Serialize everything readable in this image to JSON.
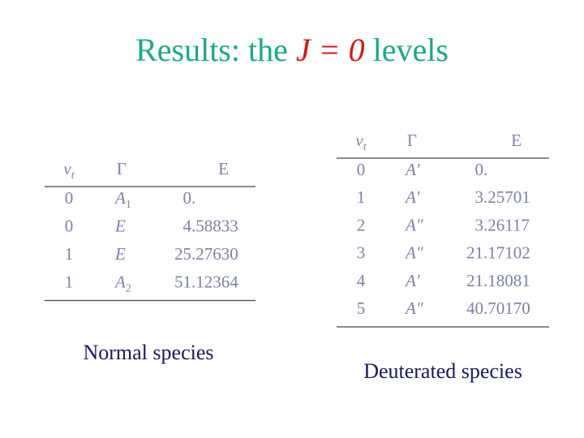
{
  "title": {
    "prefix": "Results: the",
    "math": "J = 0",
    "suffix": "levels"
  },
  "tables": [
    {
      "headers": {
        "v": "v",
        "v_sub": "t",
        "gamma": "Γ",
        "E": "E"
      },
      "rows": [
        {
          "v": "0",
          "gamma": "A",
          "gamma_sub": "1",
          "E": "0."
        },
        {
          "v": "0",
          "gamma": "E",
          "E": "4.58833"
        },
        {
          "v": "1",
          "gamma": "E",
          "E": "25.27630"
        },
        {
          "v": "1",
          "gamma": "A",
          "gamma_sub": "2",
          "E": "51.12364"
        }
      ],
      "caption": "Normal species"
    },
    {
      "headers": {
        "v": "v",
        "v_sub": "t",
        "gamma": "Γ",
        "E": "E"
      },
      "rows": [
        {
          "v": "0",
          "gamma": "A′",
          "E": "0."
        },
        {
          "v": "1",
          "gamma": "A′",
          "E": "3.25701"
        },
        {
          "v": "2",
          "gamma": "A″",
          "E": "3.26117"
        },
        {
          "v": "3",
          "gamma": "A″",
          "E": "21.17102"
        },
        {
          "v": "4",
          "gamma": "A′",
          "E": "21.18081"
        },
        {
          "v": "5",
          "gamma": "A″",
          "E": "40.70170"
        }
      ],
      "caption": "Deuterated species"
    }
  ]
}
